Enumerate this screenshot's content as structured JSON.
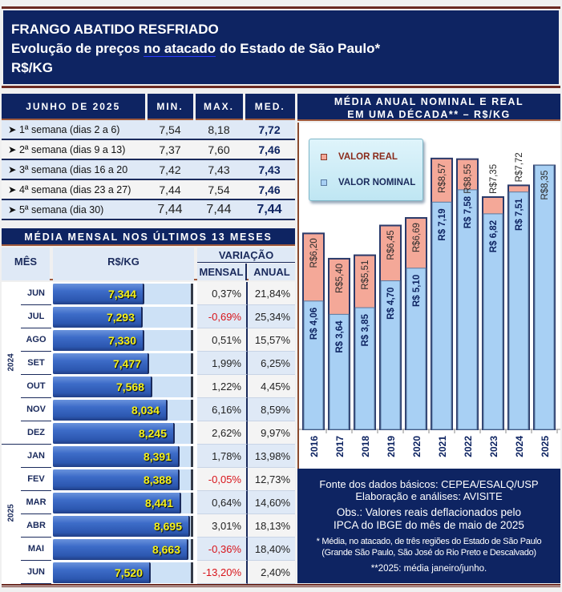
{
  "header": {
    "title": "FRANGO ABATIDO RESFRIADO",
    "subtitle_a": "Evolução de preços ",
    "subtitle_link": "no  atacado",
    "subtitle_b": " do Estado de São Paulo*",
    "unit": "R$/KG"
  },
  "weekly": {
    "headers": [
      "JUNHO DE 2025",
      "MIN.",
      "MAX.",
      "MED."
    ],
    "rows": [
      {
        "label": "➤ 1ª semana (dias 2 a 6)",
        "min": "7,54",
        "max": "8,18",
        "med": "7,72"
      },
      {
        "label": "➤ 2ª semana (dias 9 a 13)",
        "min": "7,37",
        "max": "7,60",
        "med": "7,46"
      },
      {
        "label": "➤ 3ª semana (dias 16 a 20",
        "min": "7,42",
        "max": "7,43",
        "med": "7,43"
      },
      {
        "label": "➤ 4ª semana (dias 23 a 27)",
        "min": "7,44",
        "max": "7,54",
        "med": "7,46"
      },
      {
        "label": "➤ 5ª semana (dia 30)",
        "min": "7,44",
        "max": "7,44",
        "med": "7,44"
      }
    ]
  },
  "monthly": {
    "title": "MÉDIA MENSAL NOS ÚLTIMOS 13 MESES",
    "col_month": "MÊS",
    "col_value": "R$/KG",
    "col_variation": "VARIAÇÃO",
    "col_monthly": "MENSAL",
    "col_annual": "ANUAL",
    "years": [
      {
        "label": "2024",
        "rows": 7
      },
      {
        "label": "2025",
        "rows": 6
      }
    ],
    "scale_max": 8.8,
    "scale_min": 4.6,
    "rows": [
      {
        "month": "JUN",
        "value": 7.344,
        "label": "7,344",
        "mensal": "0,37%",
        "anual": "21,84%",
        "neg": false
      },
      {
        "month": "JUL",
        "value": 7.293,
        "label": "7,293",
        "mensal": "-0,69%",
        "anual": "25,34%",
        "neg": true
      },
      {
        "month": "AGO",
        "value": 7.33,
        "label": "7,330",
        "mensal": "0,51%",
        "anual": "15,57%",
        "neg": false
      },
      {
        "month": "SET",
        "value": 7.477,
        "label": "7,477",
        "mensal": "1,99%",
        "anual": "6,25%",
        "neg": false
      },
      {
        "month": "OUT",
        "value": 7.568,
        "label": "7,568",
        "mensal": "1,22%",
        "anual": "4,45%",
        "neg": false
      },
      {
        "month": "NOV",
        "value": 8.034,
        "label": "8,034",
        "mensal": "6,16%",
        "anual": "8,59%",
        "neg": false
      },
      {
        "month": "DEZ",
        "value": 8.245,
        "label": "8,245",
        "mensal": "2,62%",
        "anual": "9,97%",
        "neg": false
      },
      {
        "month": "JAN",
        "value": 8.391,
        "label": "8,391",
        "mensal": "1,78%",
        "anual": "13,98%",
        "neg": false
      },
      {
        "month": "FEV",
        "value": 8.388,
        "label": "8,388",
        "mensal": "-0,05%",
        "anual": "12,73%",
        "neg": true
      },
      {
        "month": "MAR",
        "value": 8.441,
        "label": "8,441",
        "mensal": "0,64%",
        "anual": "14,60%",
        "neg": false
      },
      {
        "month": "ABR",
        "value": 8.695,
        "label": "8,695",
        "mensal": "3,01%",
        "anual": "18,13%",
        "neg": false
      },
      {
        "month": "MAI",
        "value": 8.663,
        "label": "8,663",
        "mensal": "-0,36%",
        "anual": "18,40%",
        "neg": true
      },
      {
        "month": "JUN",
        "value": 7.52,
        "label": "7,520",
        "mensal": "-13,20%",
        "anual": "2,40%",
        "neg": true
      }
    ]
  },
  "chart_data": {
    "type": "bar",
    "title": "MÉDIA ANUAL NOMINAL E REAL EM UMA DÉCADA** – R$/KG",
    "categories": [
      "2016",
      "2017",
      "2018",
      "2019",
      "2020",
      "2021",
      "2022",
      "2023",
      "2024",
      "2025"
    ],
    "series": [
      {
        "name": "VALOR REAL",
        "color": "#f4a898",
        "values": [
          6.2,
          5.4,
          5.51,
          6.45,
          6.69,
          8.57,
          8.55,
          7.35,
          7.72,
          8.35
        ],
        "labels": [
          "R$6,20",
          "R$5,40",
          "R$5,51",
          "R$6,45",
          "R$6,69",
          "R$8,57",
          "R$8,55",
          "R$7,35",
          "R$7,72",
          "R$8,35"
        ]
      },
      {
        "name": "VALOR NOMINAL",
        "color": "#a8d0f4",
        "values": [
          4.06,
          3.64,
          3.85,
          4.7,
          5.1,
          7.19,
          7.58,
          6.82,
          7.51,
          8.35
        ],
        "labels": [
          "R$ 4,06",
          "R$ 3,64",
          "R$ 3,85",
          "R$ 4,70",
          "R$ 5,10",
          "R$ 7,19",
          "R$ 7,58",
          "R$ 6,82",
          "R$ 7,51",
          ""
        ]
      }
    ],
    "xlabel": "",
    "ylabel": "",
    "ylim": [
      0,
      9.2
    ],
    "legend": "top-left",
    "grid": false
  },
  "notes": {
    "source": "Fonte dos dados básicos: CEPEA/ESALQ/USP",
    "elaboration": "Elaboração e análises: AVISITE",
    "obs1": "Obs.: Valores reais deflacionados pelo",
    "obs2": "IPCA do IBGE do mês de maio de 2025",
    "foot1": "* Média, no atacado, de três regiões do Estado de São Paulo",
    "foot2": "(Grande São Paulo, São José do Rio Preto e Descalvado)",
    "foot3": "**2025: média janeiro/junho."
  }
}
